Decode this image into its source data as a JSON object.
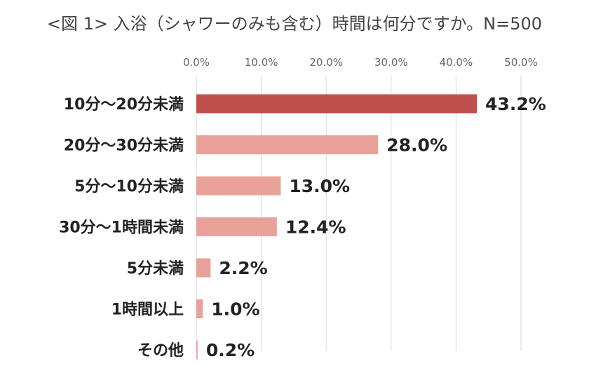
{
  "chart_data": {
    "type": "bar",
    "orientation": "horizontal",
    "title": "<図 1> 入浴（シャワーのみも含む）時間は何分ですか。N=500",
    "categories": [
      "10分～20分未満",
      "20分～30分未満",
      "5分～10分未満",
      "30分～1時間未満",
      "5分未満",
      "1時間以上",
      "その他"
    ],
    "values": [
      43.2,
      28.0,
      13.0,
      12.4,
      2.2,
      1.0,
      0.2
    ],
    "value_labels": [
      "43.2%",
      "28.0%",
      "13.0%",
      "12.4%",
      "2.2%",
      "1.0%",
      "0.2%"
    ],
    "x_ticks": [
      "0.0%",
      "10.0%",
      "20.0%",
      "30.0%",
      "40.0%",
      "50.0%"
    ],
    "xlim": [
      0,
      50
    ],
    "xlabel": "",
    "ylabel": "",
    "grid": true,
    "axis_position": "top",
    "colors": {
      "highlight": "#c0504d",
      "bar": "#e8a29a",
      "grid": "#d9d9d9"
    }
  }
}
